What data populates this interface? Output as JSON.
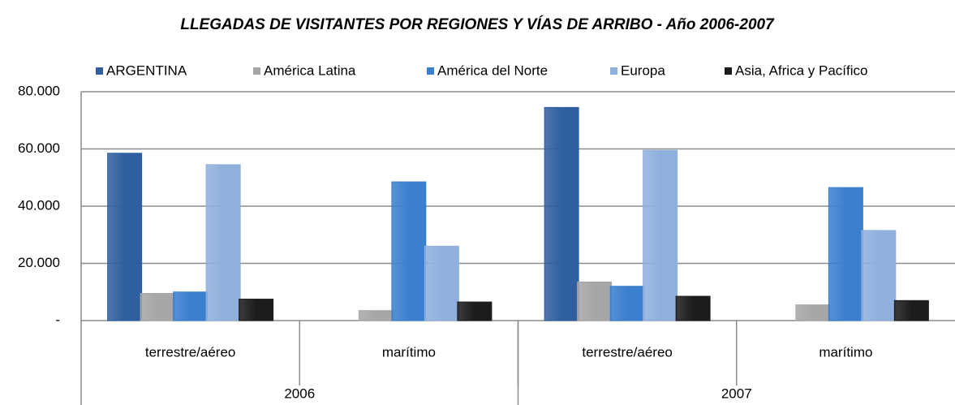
{
  "chart_data": {
    "type": "bar",
    "title": "LLEGADAS DE VISITANTES POR REGIONES Y VÍAS DE ARRIBO - Año 2006-2007",
    "categories": [
      "terrestre/aéreo",
      "marítimo",
      "terrestre/aéreo",
      "marítimo"
    ],
    "groups": [
      "2006",
      "2007"
    ],
    "series": [
      {
        "name": "ARGENTINA",
        "color": "#2f5f9f",
        "values": [
          58500,
          null,
          74500,
          null
        ]
      },
      {
        "name": "América Latina",
        "color": "#a6a6a6",
        "values": [
          9500,
          3500,
          13500,
          5500
        ]
      },
      {
        "name": "América del Norte",
        "color": "#3b7fcf",
        "values": [
          10000,
          48500,
          12000,
          46500
        ]
      },
      {
        "name": "Europa",
        "color": "#8fb0dd",
        "values": [
          54500,
          26000,
          59500,
          31500
        ]
      },
      {
        "name": "Asia, Africa y Pacífico",
        "color": "#1c1c1c",
        "values": [
          7500,
          6500,
          8500,
          7000
        ]
      }
    ],
    "ylim": [
      0,
      80000
    ],
    "yticks": [
      {
        "value": 0,
        "label": "-"
      },
      {
        "value": 20000,
        "label": "20.000"
      },
      {
        "value": 40000,
        "label": "40.000"
      },
      {
        "value": 60000,
        "label": "60.000"
      },
      {
        "value": 80000,
        "label": "80.000"
      }
    ],
    "grid": true,
    "legend": "top"
  }
}
